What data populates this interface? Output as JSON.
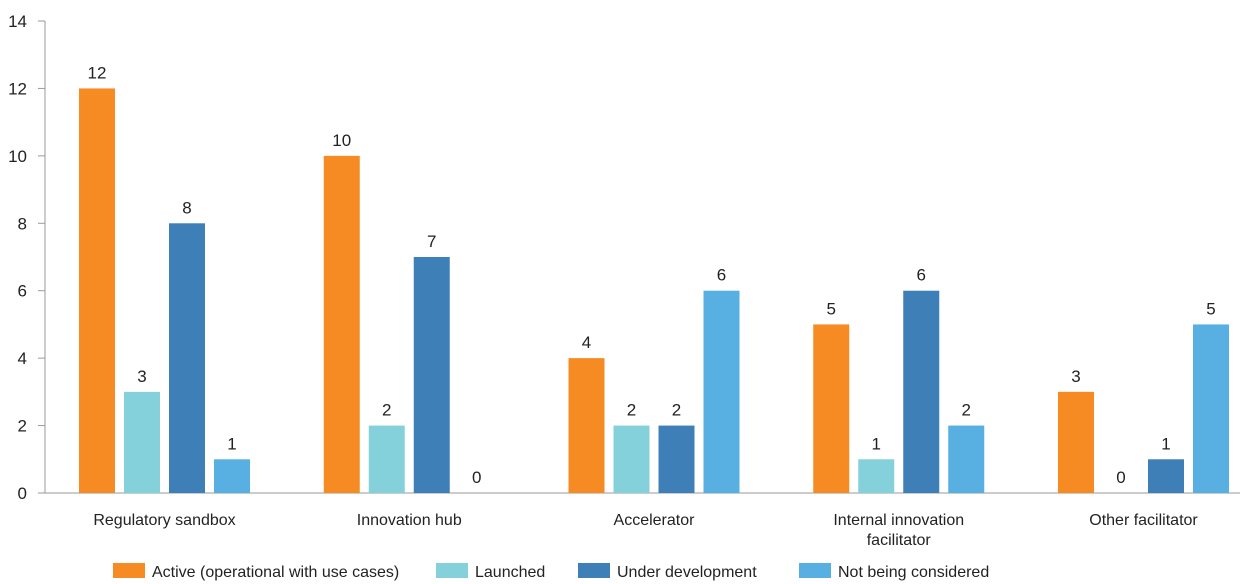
{
  "chart_data": {
    "type": "bar",
    "categories": [
      "Regulatory sandbox",
      "Innovation hub",
      "Accelerator",
      "Internal innovation facilitator",
      "Other facilitator"
    ],
    "series": [
      {
        "name": "Active (operational with use cases)",
        "color": "#F58B22",
        "values": [
          12,
          10,
          4,
          5,
          3
        ]
      },
      {
        "name": "Launched",
        "color": "#84D1DC",
        "values": [
          3,
          2,
          2,
          1,
          0
        ]
      },
      {
        "name": "Under development",
        "color": "#3F7FB8",
        "values": [
          8,
          7,
          2,
          6,
          1
        ]
      },
      {
        "name": "Not being considered",
        "color": "#58AFE1",
        "values": [
          1,
          0,
          6,
          2,
          5
        ]
      }
    ],
    "yticks": [
      0,
      2,
      4,
      6,
      8,
      10,
      12,
      14
    ],
    "ylim": [
      0,
      14
    ],
    "title": "",
    "xlabel": "",
    "ylabel": "",
    "grid": false,
    "legend_position": "bottom",
    "data_labels": true
  }
}
